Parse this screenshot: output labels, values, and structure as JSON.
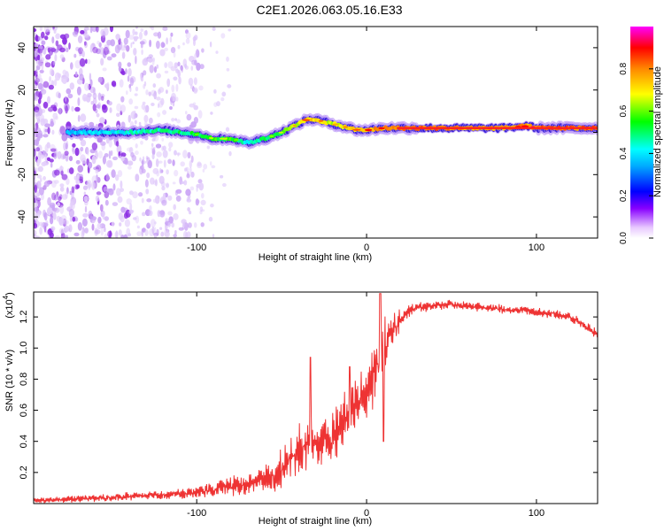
{
  "title": "C2E1.2026.063.05.16.E33",
  "chart_data": [
    {
      "type": "heatmap",
      "name": "spectrogram",
      "xlabel": "Height of straight line (km)",
      "ylabel": "Frequency (Hz)",
      "xlim": [
        -196,
        136
      ],
      "ylim": [
        -50,
        50
      ],
      "xticks": [
        -100,
        0,
        100
      ],
      "xtick_labels": [
        "-100",
        "0",
        "100"
      ],
      "yticks": [
        -40,
        -20,
        0,
        20,
        40
      ],
      "ytick_labels": [
        "-40",
        "-20",
        "0",
        "20",
        "40"
      ],
      "colorbar": {
        "label": "Normalized spectral amplitude",
        "range": [
          0,
          1
        ],
        "ticks": [
          0,
          0.2,
          0.4,
          0.6,
          0.8
        ],
        "tick_labels": [
          "0.0",
          "0.2",
          "0.4",
          "0.6",
          "0.8"
        ],
        "colors": [
          "#ffffff",
          "#8800ff",
          "#0000ff",
          "#00ffff",
          "#00ff00",
          "#ffff00",
          "#ff8800",
          "#ff0000",
          "#ff00ff"
        ]
      },
      "ridge": {
        "x": [
          -175,
          -160,
          -140,
          -120,
          -100,
          -90,
          -80,
          -70,
          -60,
          -50,
          -40,
          -35,
          -30,
          -25,
          -20,
          -15,
          -10,
          -5,
          0,
          10,
          20,
          40,
          60,
          80,
          95,
          100,
          136
        ],
        "freq": [
          0,
          0,
          0,
          1,
          -1,
          -3,
          -3,
          -5,
          -3,
          0,
          4,
          6,
          6,
          5,
          4,
          3,
          2,
          1,
          1,
          2,
          2,
          2,
          2,
          2,
          3,
          2,
          2
        ],
        "amp": [
          0.45,
          0.45,
          0.5,
          0.55,
          0.6,
          0.65,
          0.65,
          0.5,
          0.6,
          0.65,
          0.8,
          0.85,
          0.85,
          0.8,
          0.75,
          0.8,
          0.8,
          0.85,
          0.9,
          0.9,
          0.95,
          0.95,
          0.9,
          0.9,
          0.9,
          0.95,
          0.95
        ]
      }
    },
    {
      "type": "line",
      "name": "snr",
      "xlabel": "Height of straight line (km)",
      "ylabel": "SNR (10 * v/v)",
      "y_multiplier_label": "(x10",
      "y_multiplier_exp": "4",
      "xlim": [
        -196,
        136
      ],
      "ylim": [
        0,
        13600
      ],
      "xticks": [
        -100,
        0,
        100
      ],
      "xtick_labels": [
        "-100",
        "0",
        "100"
      ],
      "yticks": [
        2000,
        4000,
        6000,
        8000,
        10000,
        12000
      ],
      "ytick_labels": [
        "0.2",
        "0.4",
        "0.6",
        "0.8",
        "1.0",
        "1.2"
      ],
      "color": "#ee3333",
      "series": [
        {
          "name": "SNR",
          "x": [
            -196,
            -180,
            -160,
            -140,
            -120,
            -100,
            -90,
            -80,
            -70,
            -60,
            -50,
            -40,
            -30,
            -20,
            -15,
            -10,
            -5,
            0,
            5,
            10,
            15,
            20,
            25,
            30,
            40,
            50,
            60,
            70,
            80,
            90,
            100,
            110,
            120,
            125,
            130,
            136
          ],
          "values": [
            200,
            250,
            350,
            450,
            550,
            700,
            900,
            1100,
            1300,
            1600,
            2200,
            3300,
            3900,
            4200,
            5000,
            6000,
            6600,
            7300,
            8600,
            10000,
            11000,
            11800,
            12400,
            12600,
            12700,
            12800,
            12700,
            12600,
            12500,
            12400,
            12300,
            12200,
            12000,
            11700,
            11300,
            10900
          ],
          "noise": [
            200,
            200,
            250,
            300,
            300,
            400,
            500,
            600,
            700,
            900,
            1400,
            2000,
            1800,
            1600,
            1800,
            2000,
            1800,
            2000,
            2400,
            2600,
            1500,
            700,
            400,
            350,
            300,
            300,
            300,
            300,
            300,
            300,
            300,
            300,
            300,
            300,
            300,
            300
          ],
          "spikes_x": [
            -33,
            -10,
            8,
            10
          ],
          "spikes_y": [
            9400,
            8800,
            13500,
            4000
          ]
        }
      ]
    }
  ]
}
